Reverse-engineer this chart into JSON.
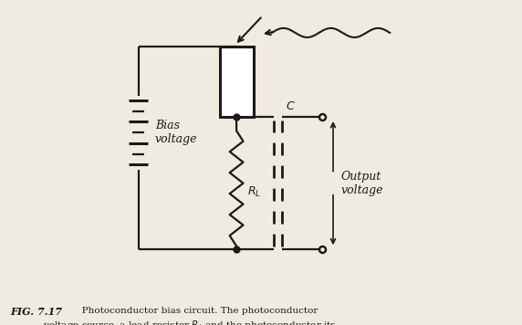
{
  "bg_color": "#f0ebe0",
  "line_color": "#1a1a1a",
  "text_color": "#1a1a1a",
  "fig_width": 5.72,
  "fig_height": 3.56,
  "dpi": 100,
  "caption1": "FIG. 7.17",
  "caption1_bold": "   Photoconductor bias circuit. The photoconductor",
  "caption2": "       voltage source, a load resistor $R_L$ and the photoconductor its",
  "label_bias_voltage": "Bias\nvoltage",
  "label_output_voltage": "Output\nvoltage",
  "label_RL": "$R_L$",
  "label_C": "$C$"
}
